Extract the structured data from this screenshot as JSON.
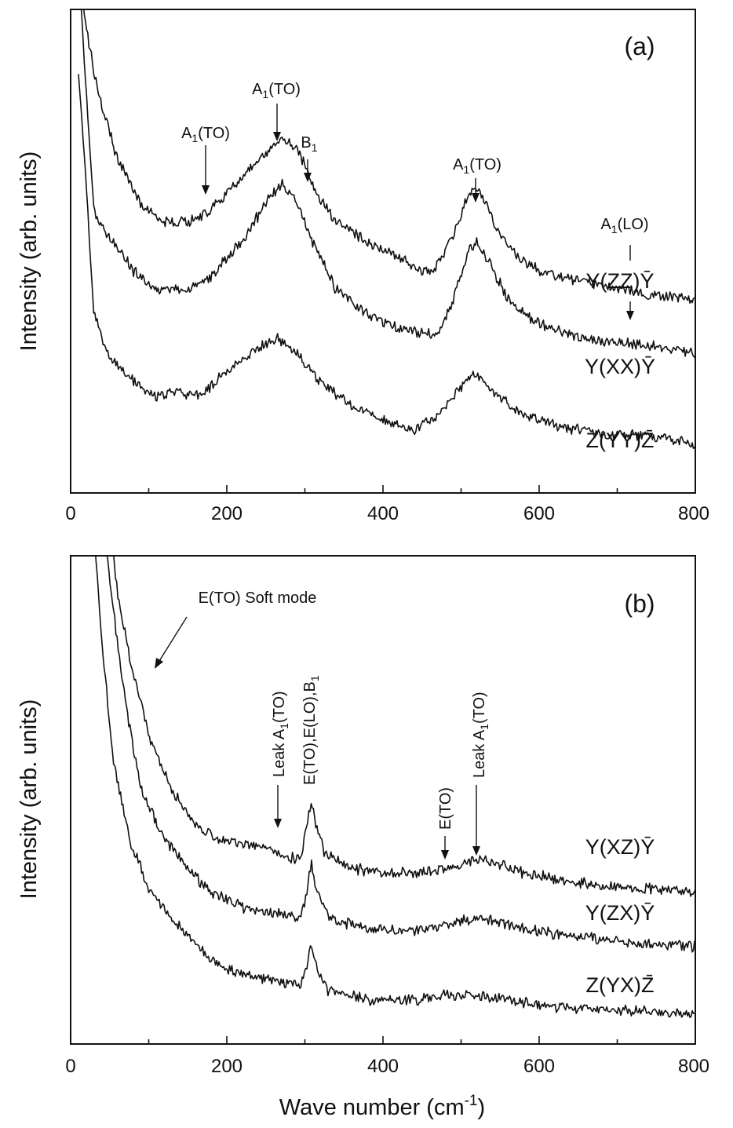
{
  "chart_data": [
    {
      "panel": "(a)",
      "type": "line",
      "ylabel": "Intensity (arb. units)",
      "xlabel": "",
      "xlim": [
        0,
        800
      ],
      "x_ticks": [
        0,
        200,
        400,
        600,
        800
      ],
      "y_ticks": "none",
      "series": [
        {
          "name": "Y(ZZ)Ȳ",
          "points": [
            [
              10,
              1.1
            ],
            [
              20,
              0.96
            ],
            [
              35,
              0.83
            ],
            [
              60,
              0.69
            ],
            [
              90,
              0.6
            ],
            [
              120,
              0.56
            ],
            [
              150,
              0.56
            ],
            [
              175,
              0.58
            ],
            [
              200,
              0.62
            ],
            [
              230,
              0.67
            ],
            [
              255,
              0.71
            ],
            [
              270,
              0.74
            ],
            [
              285,
              0.72
            ],
            [
              300,
              0.68
            ],
            [
              315,
              0.62
            ],
            [
              340,
              0.56
            ],
            [
              380,
              0.52
            ],
            [
              420,
              0.49
            ],
            [
              445,
              0.46
            ],
            [
              465,
              0.46
            ],
            [
              490,
              0.53
            ],
            [
              505,
              0.6
            ],
            [
              515,
              0.63
            ],
            [
              525,
              0.62
            ],
            [
              545,
              0.55
            ],
            [
              570,
              0.49
            ],
            [
              600,
              0.46
            ],
            [
              650,
              0.44
            ],
            [
              700,
              0.42
            ],
            [
              715,
              0.42
            ],
            [
              740,
              0.41
            ],
            [
              800,
              0.4
            ]
          ]
        },
        {
          "name": "Y(XX)Ȳ",
          "points": [
            [
              10,
              1.1
            ],
            [
              20,
              0.83
            ],
            [
              30,
              0.58
            ],
            [
              50,
              0.53
            ],
            [
              80,
              0.46
            ],
            [
              110,
              0.42
            ],
            [
              150,
              0.42
            ],
            [
              180,
              0.45
            ],
            [
              220,
              0.52
            ],
            [
              250,
              0.6
            ],
            [
              270,
              0.64
            ],
            [
              290,
              0.6
            ],
            [
              310,
              0.52
            ],
            [
              340,
              0.42
            ],
            [
              380,
              0.37
            ],
            [
              420,
              0.34
            ],
            [
              450,
              0.33
            ],
            [
              470,
              0.33
            ],
            [
              490,
              0.4
            ],
            [
              510,
              0.5
            ],
            [
              520,
              0.52
            ],
            [
              535,
              0.48
            ],
            [
              560,
              0.4
            ],
            [
              600,
              0.35
            ],
            [
              650,
              0.32
            ],
            [
              710,
              0.31
            ],
            [
              760,
              0.3
            ],
            [
              800,
              0.29
            ]
          ]
        },
        {
          "name": "Z(YY)Z̄",
          "points": [
            [
              10,
              0.87
            ],
            [
              20,
              0.63
            ],
            [
              30,
              0.37
            ],
            [
              50,
              0.28
            ],
            [
              80,
              0.23
            ],
            [
              110,
              0.2
            ],
            [
              135,
              0.21
            ],
            [
              165,
              0.2
            ],
            [
              200,
              0.25
            ],
            [
              240,
              0.3
            ],
            [
              265,
              0.32
            ],
            [
              290,
              0.29
            ],
            [
              320,
              0.23
            ],
            [
              360,
              0.18
            ],
            [
              400,
              0.15
            ],
            [
              440,
              0.13
            ],
            [
              470,
              0.16
            ],
            [
              500,
              0.22
            ],
            [
              515,
              0.25
            ],
            [
              535,
              0.22
            ],
            [
              570,
              0.17
            ],
            [
              620,
              0.14
            ],
            [
              680,
              0.12
            ],
            [
              740,
              0.12
            ],
            [
              800,
              0.1
            ]
          ]
        }
      ],
      "annotations": [
        {
          "text": "A1(TO)",
          "x": 170
        },
        {
          "text": "A1(TO)",
          "x": 265
        },
        {
          "text": "B1",
          "x": 302
        },
        {
          "text": "A1(TO)",
          "x": 515
        },
        {
          "text": "A1(LO)",
          "x": 710
        }
      ]
    },
    {
      "panel": "(b)",
      "type": "line",
      "ylabel": "Intensity (arb. units)",
      "xlabel": "Wave number (cm-1)",
      "xlim": [
        0,
        800
      ],
      "x_ticks": [
        0,
        200,
        400,
        600,
        800
      ],
      "y_ticks": "none",
      "series": [
        {
          "name": "Y(XZ)Ȳ",
          "points": [
            [
              50,
              1.1
            ],
            [
              60,
              0.92
            ],
            [
              80,
              0.76
            ],
            [
              100,
              0.63
            ],
            [
              130,
              0.52
            ],
            [
              160,
              0.45
            ],
            [
              190,
              0.42
            ],
            [
              220,
              0.41
            ],
            [
              250,
              0.4
            ],
            [
              280,
              0.38
            ],
            [
              295,
              0.38
            ],
            [
              302,
              0.44
            ],
            [
              308,
              0.5
            ],
            [
              314,
              0.45
            ],
            [
              325,
              0.39
            ],
            [
              360,
              0.36
            ],
            [
              400,
              0.35
            ],
            [
              440,
              0.35
            ],
            [
              480,
              0.36
            ],
            [
              520,
              0.38
            ],
            [
              545,
              0.37
            ],
            [
              580,
              0.35
            ],
            [
              650,
              0.33
            ],
            [
              720,
              0.32
            ],
            [
              800,
              0.31
            ]
          ]
        },
        {
          "name": "Y(ZX)Ȳ",
          "points": [
            [
              40,
              1.1
            ],
            [
              50,
              0.95
            ],
            [
              70,
              0.7
            ],
            [
              90,
              0.52
            ],
            [
              120,
              0.42
            ],
            [
              150,
              0.36
            ],
            [
              180,
              0.31
            ],
            [
              220,
              0.28
            ],
            [
              260,
              0.27
            ],
            [
              295,
              0.26
            ],
            [
              302,
              0.31
            ],
            [
              308,
              0.37
            ],
            [
              314,
              0.32
            ],
            [
              330,
              0.26
            ],
            [
              370,
              0.24
            ],
            [
              420,
              0.23
            ],
            [
              470,
              0.24
            ],
            [
              520,
              0.26
            ],
            [
              550,
              0.25
            ],
            [
              600,
              0.23
            ],
            [
              700,
              0.21
            ],
            [
              800,
              0.2
            ]
          ]
        },
        {
          "name": "Z(YX)Z̄",
          "points": [
            [
              28,
              1.1
            ],
            [
              40,
              0.82
            ],
            [
              55,
              0.58
            ],
            [
              75,
              0.42
            ],
            [
              100,
              0.32
            ],
            [
              140,
              0.24
            ],
            [
              180,
              0.17
            ],
            [
              220,
              0.14
            ],
            [
              260,
              0.13
            ],
            [
              295,
              0.12
            ],
            [
              302,
              0.16
            ],
            [
              308,
              0.21
            ],
            [
              314,
              0.16
            ],
            [
              330,
              0.11
            ],
            [
              380,
              0.09
            ],
            [
              440,
              0.09
            ],
            [
              480,
              0.1
            ],
            [
              520,
              0.1
            ],
            [
              560,
              0.09
            ],
            [
              650,
              0.07
            ],
            [
              720,
              0.07
            ],
            [
              800,
              0.06
            ]
          ]
        }
      ],
      "annotations": [
        {
          "text": "E(TO) Soft mode",
          "x": 110
        },
        {
          "text": "Leak A1(TO)",
          "x": 268
        },
        {
          "text": "E(TO),E(LO),B1",
          "x": 305
        },
        {
          "text": "E(TO)",
          "x": 478
        },
        {
          "text": "Leak A1(TO)",
          "x": 520
        }
      ]
    }
  ]
}
